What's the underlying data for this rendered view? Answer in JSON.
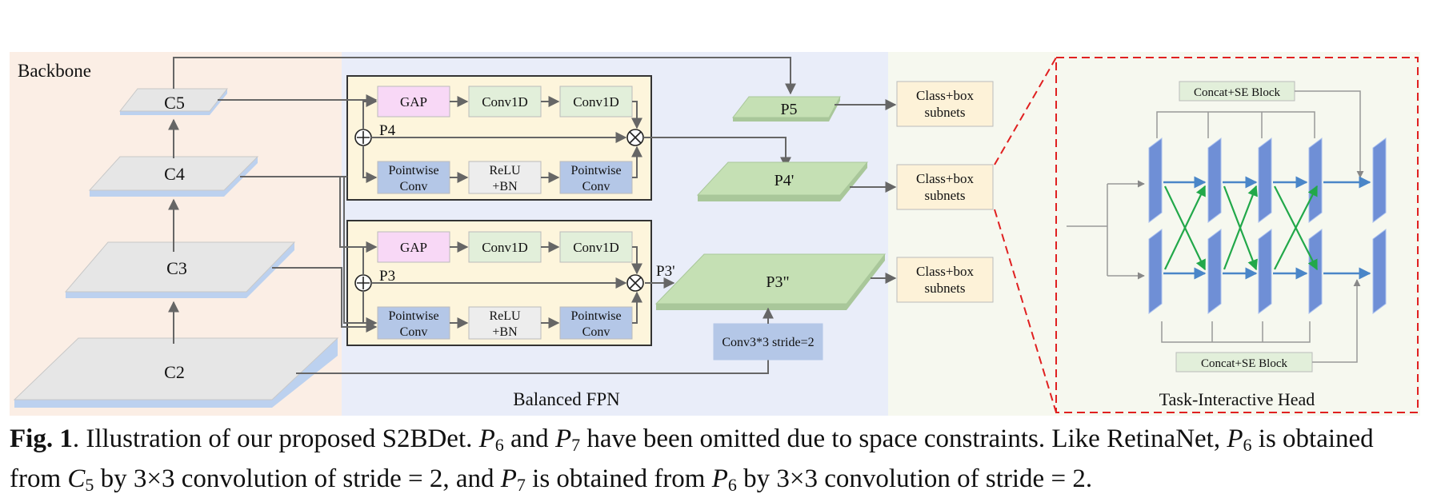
{
  "regions": {
    "backbone": "Backbone",
    "fpn": "Balanced FPN",
    "head": "Task-Interactive Head"
  },
  "backbone_levels": {
    "c5": "C5",
    "c4": "C4",
    "c3": "C3",
    "c2": "C2"
  },
  "fusion_block_1": {
    "gap": "GAP",
    "conv1d_a": "Conv1D",
    "conv1d_b": "Conv1D",
    "pw1": [
      "Pointwise",
      "Conv"
    ],
    "relu": [
      "ReLU",
      "+BN"
    ],
    "pw2": [
      "Pointwise",
      "Conv"
    ],
    "level_label": "P4"
  },
  "fusion_block_2": {
    "gap": "GAP",
    "conv1d_a": "Conv1D",
    "conv1d_b": "Conv1D",
    "pw1": [
      "Pointwise",
      "Conv"
    ],
    "relu": [
      "ReLU",
      "+BN"
    ],
    "pw2": [
      "Pointwise",
      "Conv"
    ],
    "level_label": "P3"
  },
  "outputs": {
    "p5": "P5",
    "p4": "P4'",
    "p3_prime": "P3'",
    "p3": "P3\""
  },
  "downsample": "Conv3*3 stride=2",
  "subnets": [
    [
      "Class+box",
      "subnets"
    ],
    [
      "Class+box",
      "subnets"
    ],
    [
      "Class+box",
      "subnets"
    ]
  ],
  "head_blocks": {
    "top": "Concat+SE Block",
    "bottom": "Concat+SE Block"
  },
  "caption": {
    "fig": "Fig. 1",
    "t1": ". Illustration of our proposed S2BDet. ",
    "t2": " and ",
    "t3": " have been omitted due to space constraints. Like RetinaNet, ",
    "t4": " is obtained from ",
    "t5": " by 3×3 convolution of stride = 2, and ",
    "t6": " is obtained from ",
    "t7": " by 3×3 convolution of stride = 2.",
    "p": "P",
    "c": "C",
    "n6": "6",
    "n7": "7",
    "n5": "5"
  },
  "colors": {
    "backbone_bg": "#fbeee5",
    "fpn_bg": "#e9edf9",
    "head_bg": "#f6f8ef",
    "gap": "#f8d8f6",
    "conv1d": "#e2efda",
    "pointwise": "#b4c7e7",
    "relu": "#ededed",
    "fusion_bg": "#fdf5dc",
    "output": "#c5e0b4",
    "subnet": "#fdf2d8",
    "feature_map": "#6f8fd6",
    "interact_arrow": "#22a84a",
    "dash": "#e02020"
  }
}
